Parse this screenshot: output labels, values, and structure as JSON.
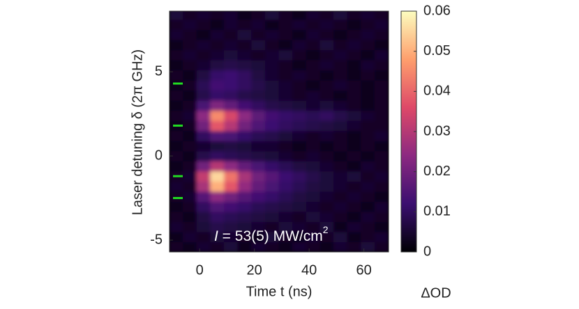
{
  "chart_data": {
    "type": "heatmap",
    "xlabel": "Time t (ns)",
    "ylabel": "Laser detuning δ (2π GHz)",
    "colorbar_label": "ΔOD",
    "annotation": {
      "symbol": "I",
      "text": " = 53(5) MW/cm",
      "sup": "2"
    },
    "xlim": [
      -11,
      69
    ],
    "ylim": [
      -5.7,
      8.6
    ],
    "xticks": [
      0,
      20,
      40,
      60
    ],
    "yticks": [
      -5,
      0,
      5
    ],
    "zlim": [
      0,
      0.06
    ],
    "zticks": [
      0,
      0.01,
      0.02,
      0.03,
      0.04,
      0.05,
      0.06
    ],
    "colorscale": [
      "#000004",
      "#3b0f70",
      "#8c2981",
      "#de4968",
      "#fe9f6d",
      "#fcfdbf"
    ],
    "markers": {
      "color": "#22dd22",
      "values": [
        4.3,
        1.8,
        -1.2,
        -2.5
      ]
    },
    "x": [
      -8.5,
      -3.5,
      1.5,
      6.5,
      11.5,
      16.5,
      21.5,
      26.5,
      31.5,
      36.5,
      41.5,
      46.5,
      51.5,
      56.5,
      61.5,
      66.5
    ],
    "y": [
      -5.4,
      -4.8,
      -4.2,
      -3.6,
      -3.0,
      -2.4,
      -1.8,
      -1.2,
      -0.6,
      0.0,
      0.6,
      1.2,
      1.8,
      2.4,
      3.0,
      3.6,
      4.2,
      4.8,
      5.4,
      6.0,
      6.6,
      7.2,
      7.8,
      8.4
    ],
    "z": [
      [
        0.004,
        0.003,
        0.005,
        0.004,
        0.006,
        0.003,
        0.005,
        0.004,
        0.003,
        0.005,
        0.004,
        0.003,
        0.005,
        0.004,
        0.006,
        0.004
      ],
      [
        0.003,
        0.005,
        0.004,
        0.006,
        0.005,
        0.004,
        0.003,
        0.006,
        0.004,
        0.003,
        0.005,
        0.004,
        0.006,
        0.003,
        0.004,
        0.005
      ],
      [
        0.005,
        0.004,
        0.006,
        0.008,
        0.007,
        0.006,
        0.005,
        0.004,
        0.006,
        0.005,
        0.004,
        0.006,
        0.003,
        0.005,
        0.004,
        0.003
      ],
      [
        0.004,
        0.003,
        0.007,
        0.01,
        0.009,
        0.008,
        0.007,
        0.006,
        0.005,
        0.004,
        0.006,
        0.005,
        0.004,
        0.003,
        0.005,
        0.004
      ],
      [
        0.003,
        0.004,
        0.01,
        0.015,
        0.013,
        0.011,
        0.009,
        0.008,
        0.007,
        0.006,
        0.005,
        0.004,
        0.005,
        0.004,
        0.003,
        0.005
      ],
      [
        0.004,
        0.005,
        0.016,
        0.024,
        0.02,
        0.016,
        0.013,
        0.011,
        0.009,
        0.007,
        0.006,
        0.005,
        0.004,
        0.005,
        0.004,
        0.003
      ],
      [
        0.005,
        0.004,
        0.028,
        0.05,
        0.038,
        0.025,
        0.018,
        0.014,
        0.011,
        0.009,
        0.007,
        0.006,
        0.005,
        0.004,
        0.005,
        0.004
      ],
      [
        0.004,
        0.005,
        0.032,
        0.055,
        0.042,
        0.028,
        0.02,
        0.016,
        0.012,
        0.01,
        0.008,
        0.006,
        0.005,
        0.006,
        0.004,
        0.005
      ],
      [
        0.003,
        0.004,
        0.02,
        0.03,
        0.024,
        0.018,
        0.014,
        0.011,
        0.009,
        0.007,
        0.006,
        0.005,
        0.004,
        0.003,
        0.005,
        0.004
      ],
      [
        0.004,
        0.003,
        0.008,
        0.01,
        0.009,
        0.008,
        0.007,
        0.006,
        0.005,
        0.004,
        0.005,
        0.004,
        0.003,
        0.004,
        0.003,
        0.004
      ],
      [
        0.003,
        0.004,
        0.005,
        0.006,
        0.007,
        0.006,
        0.005,
        0.005,
        0.004,
        0.003,
        0.004,
        0.003,
        0.004,
        0.003,
        0.004,
        0.003
      ],
      [
        0.004,
        0.003,
        0.01,
        0.015,
        0.014,
        0.011,
        0.009,
        0.008,
        0.006,
        0.005,
        0.004,
        0.005,
        0.004,
        0.003,
        0.004,
        0.005
      ],
      [
        0.003,
        0.004,
        0.02,
        0.038,
        0.03,
        0.02,
        0.015,
        0.012,
        0.01,
        0.009,
        0.008,
        0.007,
        0.006,
        0.005,
        0.004,
        0.004
      ],
      [
        0.004,
        0.005,
        0.024,
        0.045,
        0.035,
        0.024,
        0.017,
        0.013,
        0.011,
        0.01,
        0.009,
        0.01,
        0.008,
        0.006,
        0.005,
        0.004
      ],
      [
        0.003,
        0.004,
        0.014,
        0.022,
        0.018,
        0.013,
        0.01,
        0.008,
        0.007,
        0.006,
        0.005,
        0.006,
        0.005,
        0.004,
        0.003,
        0.004
      ],
      [
        0.004,
        0.003,
        0.008,
        0.011,
        0.01,
        0.008,
        0.007,
        0.006,
        0.005,
        0.004,
        0.005,
        0.004,
        0.003,
        0.004,
        0.003,
        0.004
      ],
      [
        0.003,
        0.004,
        0.009,
        0.013,
        0.012,
        0.01,
        0.008,
        0.006,
        0.005,
        0.004,
        0.003,
        0.004,
        0.005,
        0.004,
        0.003,
        0.004
      ],
      [
        0.004,
        0.003,
        0.007,
        0.011,
        0.012,
        0.01,
        0.007,
        0.005,
        0.004,
        0.005,
        0.004,
        0.003,
        0.004,
        0.003,
        0.004,
        0.003
      ],
      [
        0.003,
        0.004,
        0.005,
        0.007,
        0.008,
        0.007,
        0.006,
        0.005,
        0.004,
        0.003,
        0.004,
        0.005,
        0.004,
        0.003,
        0.005,
        0.004
      ],
      [
        0.004,
        0.005,
        0.004,
        0.005,
        0.006,
        0.005,
        0.004,
        0.005,
        0.006,
        0.004,
        0.003,
        0.004,
        0.005,
        0.004,
        0.003,
        0.005
      ],
      [
        0.003,
        0.004,
        0.005,
        0.004,
        0.005,
        0.004,
        0.006,
        0.004,
        0.003,
        0.005,
        0.004,
        0.006,
        0.004,
        0.005,
        0.004,
        0.003
      ],
      [
        0.005,
        0.004,
        0.003,
        0.005,
        0.004,
        0.006,
        0.004,
        0.005,
        0.004,
        0.003,
        0.005,
        0.004,
        0.003,
        0.004,
        0.005,
        0.004
      ],
      [
        0.004,
        0.005,
        0.004,
        0.003,
        0.005,
        0.004,
        0.005,
        0.003,
        0.004,
        0.005,
        0.004,
        0.005,
        0.004,
        0.003,
        0.004,
        0.005
      ],
      [
        0.006,
        0.004,
        0.005,
        0.004,
        0.005,
        0.003,
        0.004,
        0.006,
        0.004,
        0.003,
        0.005,
        0.004,
        0.006,
        0.004,
        0.005,
        0.004
      ]
    ]
  }
}
